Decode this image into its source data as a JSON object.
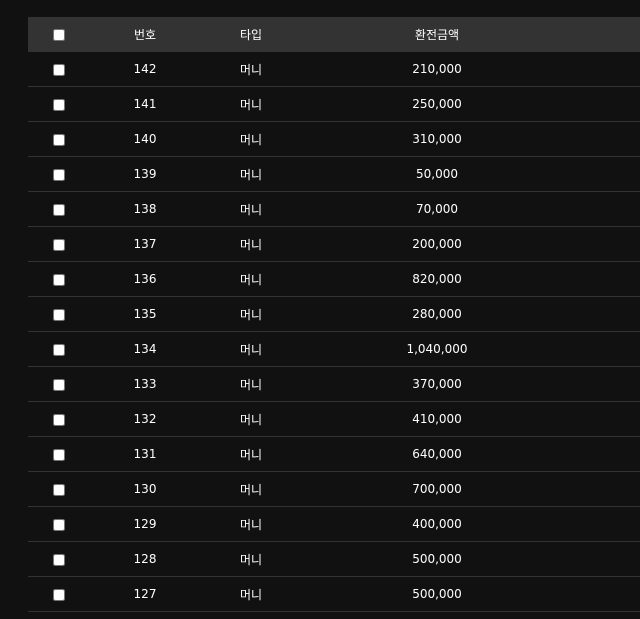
{
  "table": {
    "headers": {
      "number": "번호",
      "type": "타입",
      "amount": "환전금액"
    },
    "rows": [
      {
        "number": "142",
        "type": "머니",
        "amount": "210,000"
      },
      {
        "number": "141",
        "type": "머니",
        "amount": "250,000"
      },
      {
        "number": "140",
        "type": "머니",
        "amount": "310,000"
      },
      {
        "number": "139",
        "type": "머니",
        "amount": "50,000"
      },
      {
        "number": "138",
        "type": "머니",
        "amount": "70,000"
      },
      {
        "number": "137",
        "type": "머니",
        "amount": "200,000"
      },
      {
        "number": "136",
        "type": "머니",
        "amount": "820,000"
      },
      {
        "number": "135",
        "type": "머니",
        "amount": "280,000"
      },
      {
        "number": "134",
        "type": "머니",
        "amount": "1,040,000"
      },
      {
        "number": "133",
        "type": "머니",
        "amount": "370,000"
      },
      {
        "number": "132",
        "type": "머니",
        "amount": "410,000"
      },
      {
        "number": "131",
        "type": "머니",
        "amount": "640,000"
      },
      {
        "number": "130",
        "type": "머니",
        "amount": "700,000"
      },
      {
        "number": "129",
        "type": "머니",
        "amount": "400,000"
      },
      {
        "number": "128",
        "type": "머니",
        "amount": "500,000"
      },
      {
        "number": "127",
        "type": "머니",
        "amount": "500,000"
      }
    ]
  }
}
